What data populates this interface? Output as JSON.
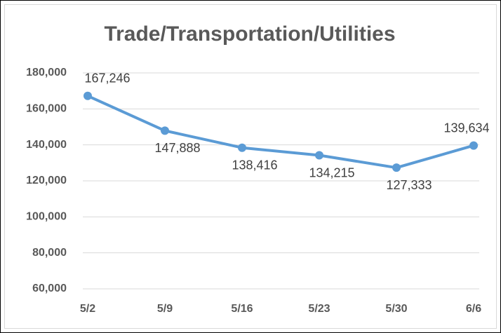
{
  "chart_data": {
    "type": "line",
    "title": "Trade/Transportation/Utilities",
    "categories": [
      "5/2",
      "5/9",
      "5/16",
      "5/23",
      "5/30",
      "6/6"
    ],
    "series": [
      {
        "name": "Trade/Transportation/Utilities",
        "color": "#5b9bd5",
        "values": [
          167246,
          147888,
          138416,
          134215,
          127333,
          139634
        ],
        "value_labels": [
          "167,246",
          "147,888",
          "138,416",
          "134,215",
          "127,333",
          "139,634"
        ]
      }
    ],
    "ylim": [
      60000,
      180000
    ],
    "yticks": [
      {
        "value": 60000,
        "label": "60,000"
      },
      {
        "value": 80000,
        "label": "80,000"
      },
      {
        "value": 100000,
        "label": "100,000"
      },
      {
        "value": 120000,
        "label": "120,000"
      },
      {
        "value": 140000,
        "label": "140,000"
      },
      {
        "value": 160000,
        "label": "160,000"
      },
      {
        "value": 180000,
        "label": "180,000"
      }
    ],
    "grid": true
  }
}
